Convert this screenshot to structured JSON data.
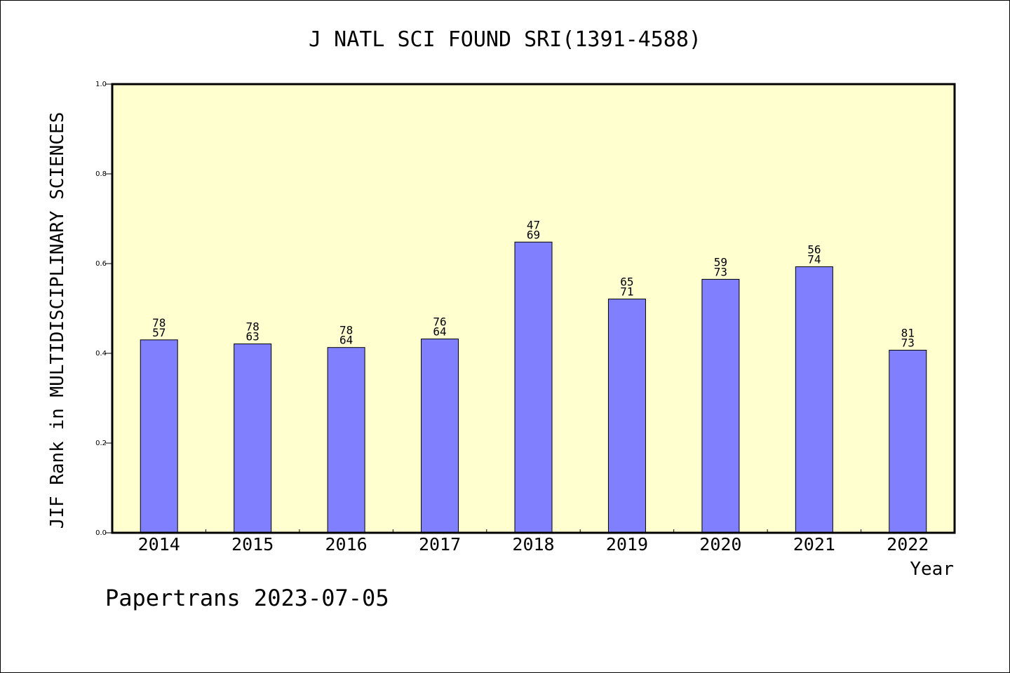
{
  "chart_data": {
    "type": "bar",
    "title": "J NATL SCI FOUND SRI(1391-4588)",
    "xlabel": "Year",
    "ylabel": "JIF Rank in MULTIDISCIPLINARY SCIENCES",
    "ylim": [
      0,
      1.0
    ],
    "yticks": [
      "0.0",
      "0.2",
      "0.4",
      "0.6",
      "0.8",
      "1.0"
    ],
    "grid": false,
    "categories": [
      "2014",
      "2015",
      "2016",
      "2017",
      "2018",
      "2019",
      "2020",
      "2021",
      "2022"
    ],
    "values": [
      0.43,
      0.421,
      0.413,
      0.432,
      0.648,
      0.521,
      0.565,
      0.593,
      0.407
    ],
    "labels_top": [
      "78",
      "78",
      "78",
      "76",
      "47",
      "65",
      "59",
      "56",
      "81"
    ],
    "labels_bottom": [
      "57",
      "63",
      "64",
      "64",
      "69",
      "71",
      "73",
      "74",
      "73"
    ],
    "bar_color": "#8080ff",
    "plot_background": "#ffffd0"
  },
  "footer": "Papertrans 2023-07-05"
}
